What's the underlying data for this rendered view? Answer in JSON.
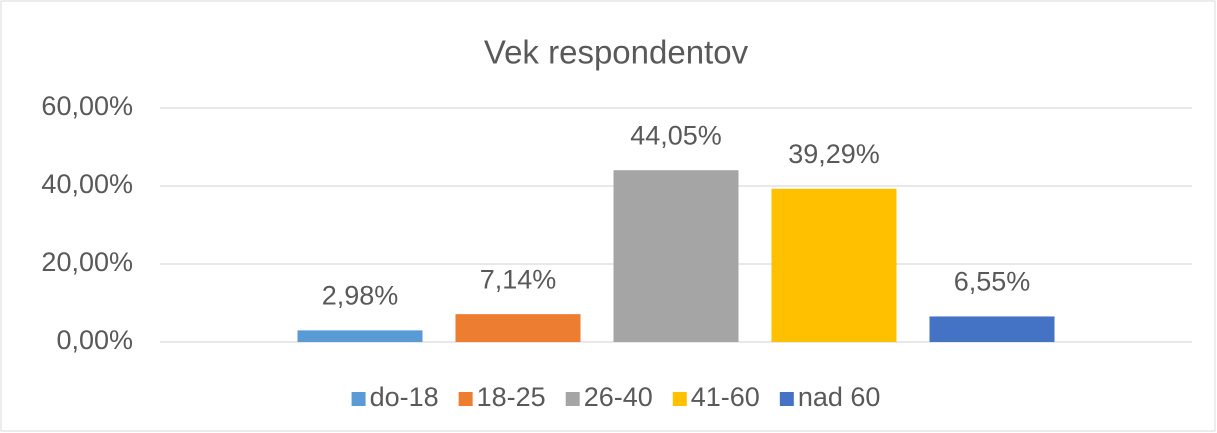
{
  "chart_data": {
    "type": "bar",
    "title": "Vek respondentov",
    "categories": [
      null
    ],
    "series": [
      {
        "name": "do-18",
        "color": "#5b9bd5",
        "values": [
          2.98
        ],
        "value_labels": [
          "2,98%"
        ]
      },
      {
        "name": "18-25",
        "color": "#ed7d31",
        "values": [
          7.14
        ],
        "value_labels": [
          "7,14%"
        ]
      },
      {
        "name": "26-40",
        "color": "#a5a5a5",
        "values": [
          44.05
        ],
        "value_labels": [
          "44,05%"
        ]
      },
      {
        "name": "41-60",
        "color": "#ffc000",
        "values": [
          39.29
        ],
        "value_labels": [
          "39,29%"
        ]
      },
      {
        "name": "nad 60",
        "color": "#4472c4",
        "values": [
          6.55
        ],
        "value_labels": [
          "6,55%"
        ]
      }
    ],
    "ylim": [
      0,
      60
    ],
    "yticks": [
      {
        "value": 0,
        "label": "0,00%"
      },
      {
        "value": 20,
        "label": "20,00%"
      },
      {
        "value": 40,
        "label": "40,00%"
      },
      {
        "value": 60,
        "label": "60,00%"
      }
    ],
    "grid": true,
    "legend": "bottom"
  }
}
